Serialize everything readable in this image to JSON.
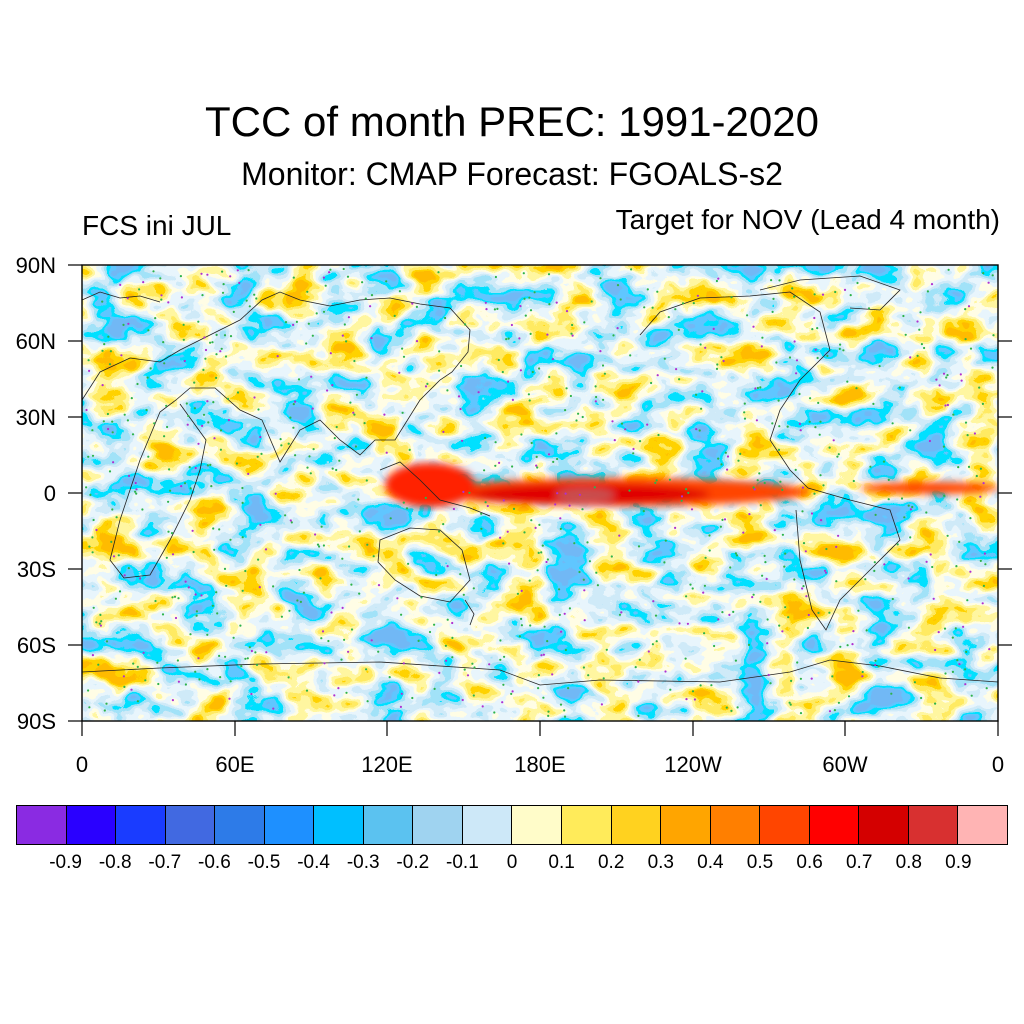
{
  "title": "TCC of month PREC: 1991-2020",
  "subtitle": "Monitor: CMAP   Forecast: FGOALS-s2",
  "left_label": "FCS ini JUL",
  "right_label": "Target for NOV (Lead 4 month)",
  "y_ticks": [
    "90N",
    "60N",
    "30N",
    "0",
    "30S",
    "60S",
    "90S"
  ],
  "x_ticks": [
    "0",
    "60E",
    "120E",
    "180E",
    "120W",
    "60W",
    "0"
  ],
  "colorbar": {
    "labels": [
      "-0.9",
      "-0.8",
      "-0.7",
      "-0.6",
      "-0.5",
      "-0.4",
      "-0.3",
      "-0.2",
      "-0.1",
      "0",
      "0.1",
      "0.2",
      "0.3",
      "0.4",
      "0.5",
      "0.6",
      "0.7",
      "0.8",
      "0.9"
    ],
    "colors": [
      "#8a2be2",
      "#2a00ff",
      "#1a3cff",
      "#4169e1",
      "#2d7be8",
      "#1e90ff",
      "#00bfff",
      "#5bc2f0",
      "#9fd3f0",
      "#cde8f8",
      "#fffcc9",
      "#ffeb5a",
      "#ffd21f",
      "#ffa500",
      "#ff7f00",
      "#ff4500",
      "#ff0000",
      "#d40000",
      "#d83030",
      "#ffb4b4"
    ]
  }
}
